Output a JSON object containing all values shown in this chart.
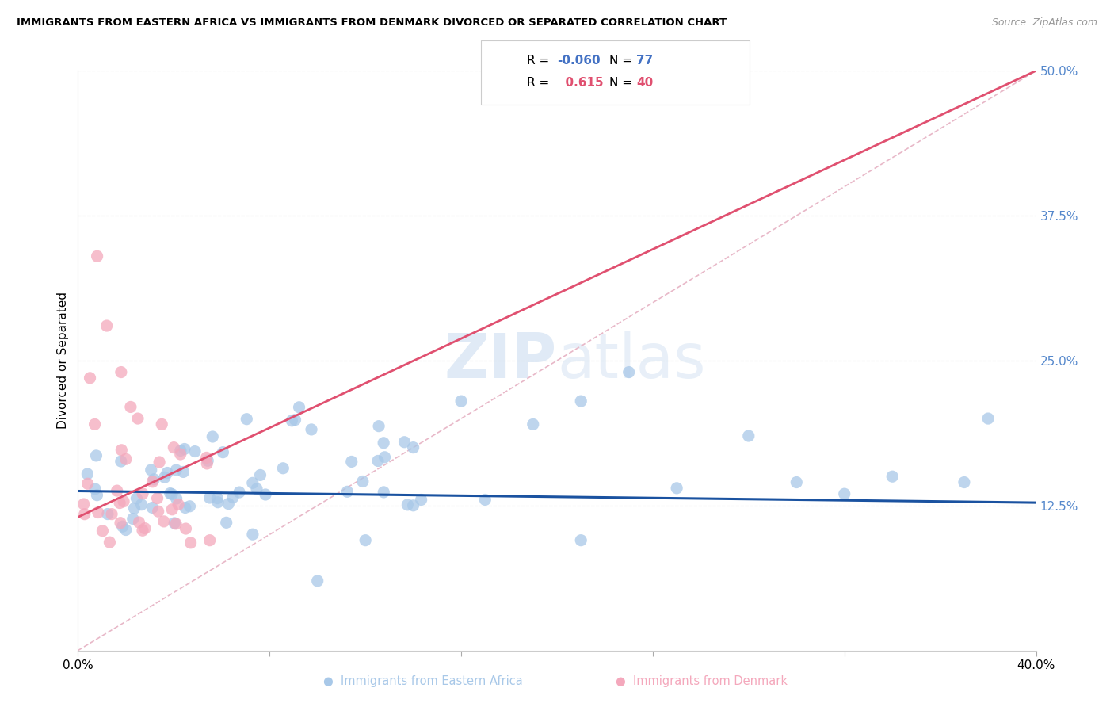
{
  "title": "IMMIGRANTS FROM EASTERN AFRICA VS IMMIGRANTS FROM DENMARK DIVORCED OR SEPARATED CORRELATION CHART",
  "source": "Source: ZipAtlas.com",
  "ylabel": "Divorced or Separated",
  "right_ytick_vals": [
    0.125,
    0.25,
    0.375,
    0.5
  ],
  "right_ytick_labels": [
    "12.5%",
    "25.0%",
    "37.5%",
    "50.0%"
  ],
  "xlim": [
    0.0,
    0.4
  ],
  "ylim": [
    0.0,
    0.5
  ],
  "R_blue": -0.06,
  "N_blue": 77,
  "R_pink": 0.615,
  "N_pink": 40,
  "color_blue": "#a8c8e8",
  "color_pink": "#f4a8bc",
  "line_blue": "#1a52a0",
  "line_pink": "#e05070",
  "legend_blue": "Immigrants from Eastern Africa",
  "legend_pink": "Immigrants from Denmark",
  "blue_line_x": [
    0.0,
    0.4
  ],
  "blue_line_y": [
    0.1375,
    0.1275
  ],
  "pink_line_x": [
    0.0,
    0.4
  ],
  "pink_line_y": [
    0.115,
    0.5
  ],
  "ref_line_x": [
    0.0,
    0.4
  ],
  "ref_line_y": [
    0.0,
    0.5
  ]
}
